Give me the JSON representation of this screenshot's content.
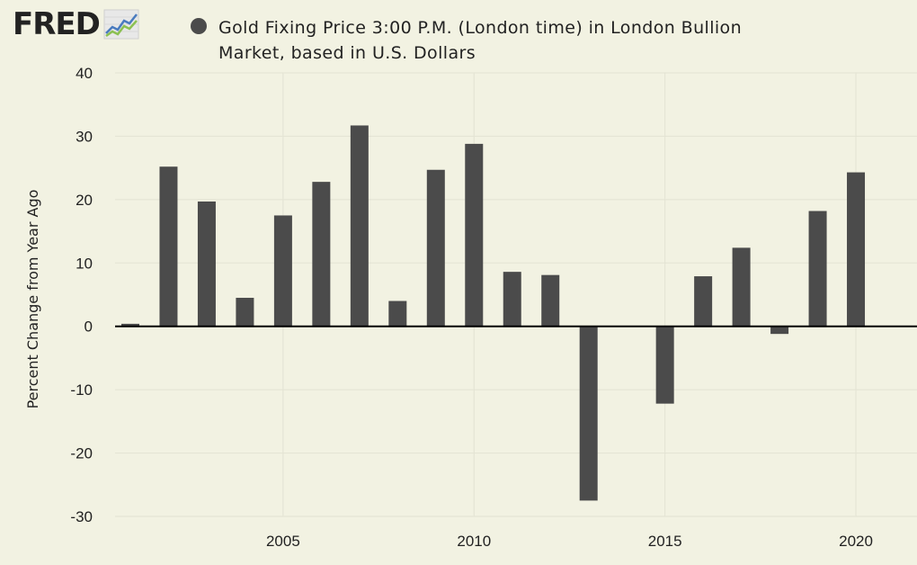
{
  "brand": {
    "logo_text": "FRED",
    "logo_icon": "line-chart-icon"
  },
  "colors": {
    "background": "#f2f2e2",
    "bar": "#4b4b4b",
    "grid": "#e3e3d3",
    "zero_line": "#000000",
    "logo_line_blue": "#4a7bbf",
    "logo_line_green": "#8cc152"
  },
  "chart_data": {
    "type": "bar",
    "title": "Gold Fixing Price 3:00 P.M. (London time) in London Bullion Market, based in U.S. Dollars",
    "ylabel": "Percent Change from Year Ago",
    "xlabel": "",
    "ylim": [
      -30,
      40
    ],
    "yticks": [
      -30,
      -20,
      -10,
      0,
      10,
      20,
      30,
      40
    ],
    "xlim": [
      2000.6,
      2021.6
    ],
    "xticks": [
      2005,
      2010,
      2015,
      2020
    ],
    "grid": true,
    "x": [
      2001,
      2002,
      2003,
      2004,
      2005,
      2006,
      2007,
      2008,
      2009,
      2010,
      2011,
      2012,
      2013,
      2014,
      2015,
      2016,
      2017,
      2018,
      2019,
      2020
    ],
    "values": [
      0.4,
      25.2,
      19.7,
      4.5,
      17.5,
      22.8,
      31.7,
      4.0,
      24.7,
      28.8,
      8.6,
      8.1,
      -27.5,
      0.0,
      -12.2,
      7.9,
      12.4,
      -1.2,
      18.2,
      24.3
    ]
  }
}
